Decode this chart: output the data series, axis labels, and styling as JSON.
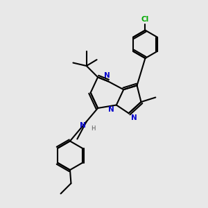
{
  "bg_color": "#e8e8e8",
  "bond_color": "#000000",
  "n_color": "#0000cc",
  "cl_color": "#00aa00",
  "h_color": "#555555",
  "line_width": 1.5,
  "fig_size": [
    3.0,
    3.0
  ],
  "dpi": 100,
  "xlim": [
    0,
    10
  ],
  "ylim": [
    0,
    10
  ]
}
